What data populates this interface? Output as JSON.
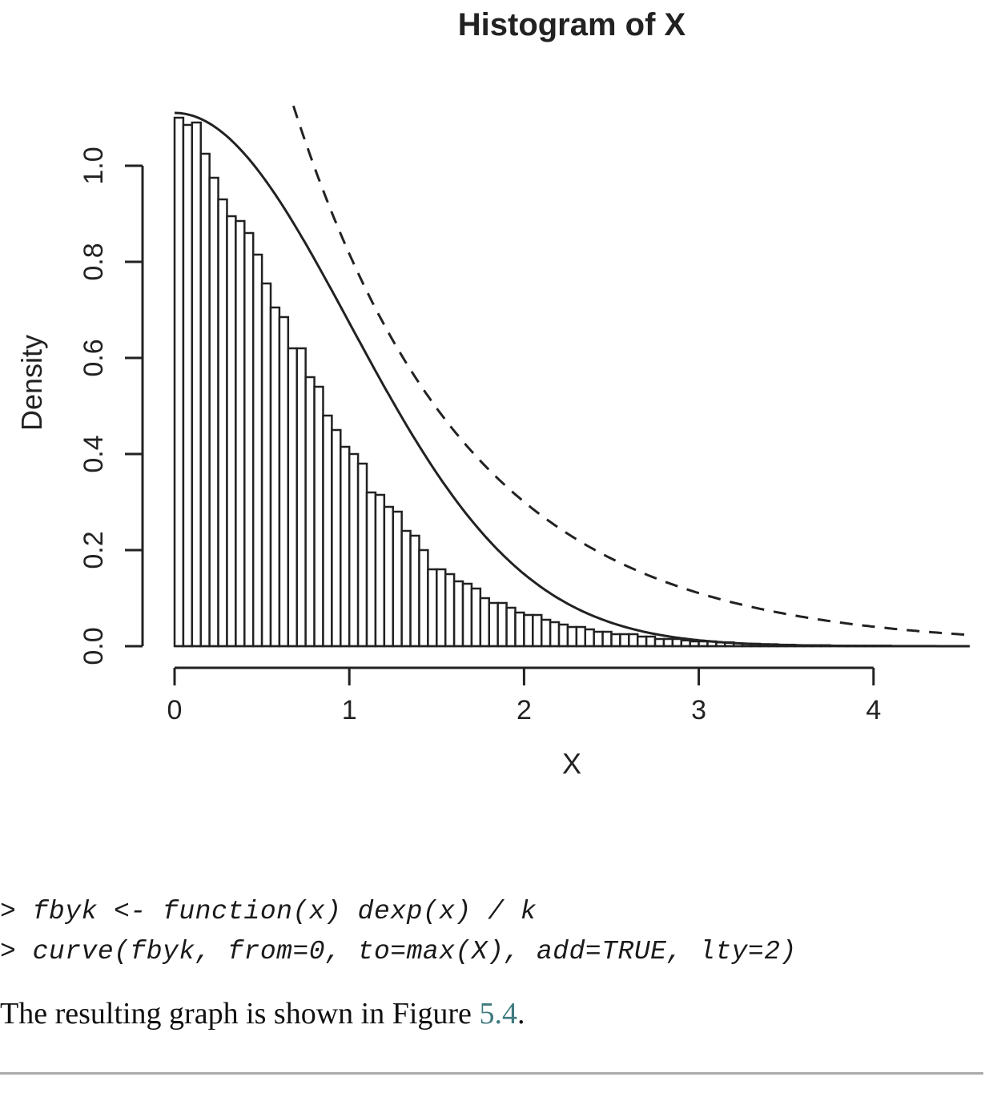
{
  "chart_data": {
    "type": "histogram",
    "title": "Histogram of X",
    "xlabel": "X",
    "ylabel": "Density",
    "xlim": [
      0,
      4.55
    ],
    "ylim": [
      0,
      1.1
    ],
    "x_ticks": [
      "0",
      "1",
      "2",
      "3",
      "4"
    ],
    "y_ticks": [
      "0.0",
      "0.2",
      "0.4",
      "0.6",
      "0.8",
      "1.0"
    ],
    "grid": false,
    "bin_width": 0.05,
    "bin_start": 0,
    "densities": [
      1.1,
      1.085,
      1.09,
      1.025,
      0.975,
      0.93,
      0.895,
      0.885,
      0.86,
      0.815,
      0.755,
      0.705,
      0.685,
      0.62,
      0.62,
      0.56,
      0.54,
      0.48,
      0.45,
      0.415,
      0.4,
      0.38,
      0.32,
      0.315,
      0.29,
      0.28,
      0.24,
      0.23,
      0.2,
      0.16,
      0.16,
      0.15,
      0.135,
      0.13,
      0.12,
      0.1,
      0.09,
      0.09,
      0.08,
      0.07,
      0.065,
      0.065,
      0.055,
      0.05,
      0.045,
      0.04,
      0.04,
      0.035,
      0.03,
      0.03,
      0.025,
      0.025,
      0.025,
      0.02,
      0.02,
      0.015,
      0.015,
      0.015,
      0.012,
      0.01,
      0.01,
      0.01,
      0.008,
      0.008,
      0.006,
      0.005,
      0.005,
      0.004,
      0.004,
      0.003,
      0.003,
      0.002,
      0.002,
      0.002,
      0.002,
      0.001,
      0.001,
      0.001,
      0.001,
      0.001,
      0.001,
      0.001,
      0.0,
      0.0,
      0.0,
      0.0,
      0.0,
      0.0,
      0.0,
      0.0,
      0.0,
      0.0
    ],
    "series": [
      {
        "type": "line",
        "linestyle": "solid",
        "x": [
          0,
          4.55
        ],
        "function": "2*dnorm(x)/(2*dnorm(0)) * 1.11 (half-normal target density)"
      },
      {
        "type": "line",
        "linestyle": "dashed",
        "x": [
          0.68,
          4.55
        ],
        "function": "dexp(x) / k"
      }
    ]
  },
  "code": {
    "line1": "> fbyk <- function(x) dexp(x) / k",
    "line2": "> curve(fbyk, from=0, to=max(X), add=TRUE, lty=2)"
  },
  "caption": {
    "text": "The resulting graph is shown in Figure ",
    "ref": "5.4",
    "end": "."
  }
}
